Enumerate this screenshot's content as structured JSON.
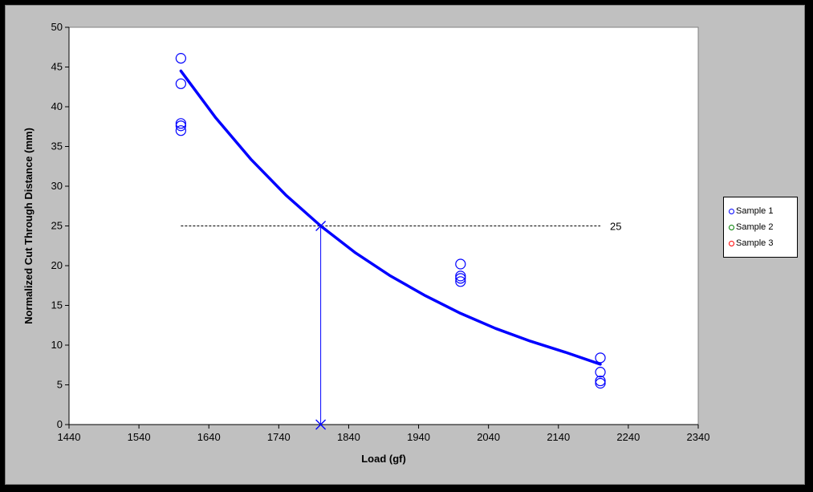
{
  "chart_data": {
    "type": "scatter",
    "xlabel": "Load (gf)",
    "ylabel": "Normalized Cut Through Distance (mm)",
    "xlim": [
      1440,
      2340
    ],
    "ylim": [
      0,
      50
    ],
    "x_ticks": [
      1440,
      1540,
      1640,
      1740,
      1840,
      1940,
      2040,
      2140,
      2240,
      2340
    ],
    "y_ticks": [
      0,
      5,
      10,
      15,
      20,
      25,
      30,
      35,
      40,
      45,
      50
    ],
    "grid": false,
    "legend_position": "right",
    "series": [
      {
        "name": "Sample 1",
        "color": "#0000FF",
        "marker": "circle",
        "points": [
          {
            "x": 1600,
            "y": 46.1
          },
          {
            "x": 1600,
            "y": 42.9
          },
          {
            "x": 1600,
            "y": 37.9
          },
          {
            "x": 1600,
            "y": 37.6
          },
          {
            "x": 1600,
            "y": 37.0
          },
          {
            "x": 2000,
            "y": 20.2
          },
          {
            "x": 2000,
            "y": 18.7
          },
          {
            "x": 2000,
            "y": 18.4
          },
          {
            "x": 2000,
            "y": 18.0
          },
          {
            "x": 2200,
            "y": 8.4
          },
          {
            "x": 2200,
            "y": 6.6
          },
          {
            "x": 2200,
            "y": 5.5
          },
          {
            "x": 2200,
            "y": 5.2
          }
        ]
      },
      {
        "name": "Sample 2",
        "color": "#008000",
        "marker": "circle",
        "points": []
      },
      {
        "name": "Sample 3",
        "color": "#FF0000",
        "marker": "circle",
        "points": []
      }
    ],
    "fit_curve": {
      "color": "#0000FF",
      "points": [
        {
          "x": 1600,
          "y": 44.5
        },
        {
          "x": 1650,
          "y": 38.6
        },
        {
          "x": 1700,
          "y": 33.4
        },
        {
          "x": 1750,
          "y": 28.9
        },
        {
          "x": 1800,
          "y": 25.0
        },
        {
          "x": 1850,
          "y": 21.6
        },
        {
          "x": 1900,
          "y": 18.7
        },
        {
          "x": 1950,
          "y": 16.2
        },
        {
          "x": 2000,
          "y": 14.0
        },
        {
          "x": 2050,
          "y": 12.1
        },
        {
          "x": 2100,
          "y": 10.5
        },
        {
          "x": 2150,
          "y": 9.1
        },
        {
          "x": 2200,
          "y": 7.6
        }
      ]
    },
    "reference": {
      "y_value": 25,
      "y_label": "25",
      "x_start": 1600,
      "x_end": 2200,
      "intersect_x": 1800
    }
  }
}
